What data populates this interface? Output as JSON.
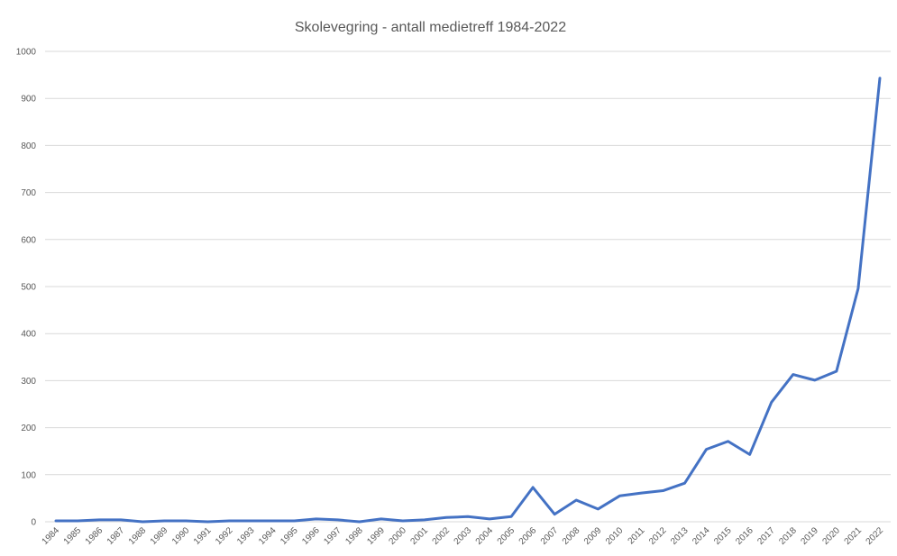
{
  "chart_data": {
    "type": "line",
    "title": "Skolevegring - antall medietreff 1984-2022",
    "xlabel": "",
    "ylabel": "",
    "ylim": [
      0,
      1000
    ],
    "yticks": [
      "0",
      "100",
      "200",
      "300",
      "400",
      "500",
      "600",
      "700",
      "800",
      "900",
      "1000"
    ],
    "grid": true,
    "legend": "none",
    "line_color": "#4472c4",
    "grid_color": "#d9d9d9",
    "categories": [
      "1984",
      "1985",
      "1986",
      "1987",
      "1988",
      "1989",
      "1990",
      "1991",
      "1992",
      "1993",
      "1994",
      "1995",
      "1996",
      "1997",
      "1998",
      "1999",
      "2000",
      "2001",
      "2002",
      "2003",
      "2004",
      "2005",
      "2006",
      "2007",
      "2008",
      "2009",
      "2010",
      "2011",
      "2012",
      "2013",
      "2014",
      "2015",
      "2016",
      "2017",
      "2018",
      "2019",
      "2020",
      "2021",
      "2022"
    ],
    "series": [
      {
        "values": [
          2,
          2,
          4,
          4,
          0,
          2,
          2,
          0,
          2,
          2,
          2,
          2,
          6,
          4,
          0,
          6,
          2,
          4,
          9,
          11,
          6,
          11,
          73,
          16,
          46,
          27,
          55,
          61,
          66,
          82,
          154,
          171,
          143,
          254,
          313,
          301,
          320,
          496,
          943
        ]
      }
    ]
  }
}
